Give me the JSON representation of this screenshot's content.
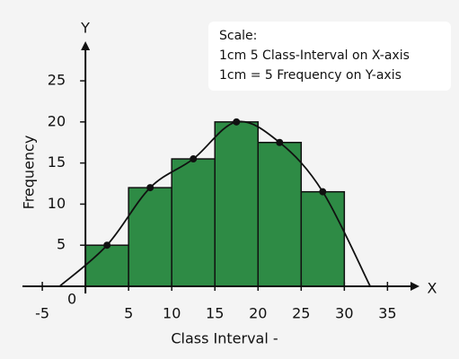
{
  "chart_data": {
    "type": "histogram",
    "bins": [
      0,
      5,
      10,
      15,
      20,
      25,
      30
    ],
    "values": [
      5,
      12,
      15.5,
      20,
      17.5,
      11.5
    ],
    "color": "#2e8b45",
    "curve": {
      "x": [
        -3,
        2.5,
        7.5,
        12.5,
        17.5,
        22.5,
        27.5,
        33
      ],
      "values": [
        0,
        5,
        12,
        15.5,
        20,
        17.5,
        11.5,
        0
      ]
    },
    "xlim": [
      -7.3,
      38.5
    ],
    "ylim": [
      0,
      28.5
    ],
    "xticks": [
      -5,
      0,
      5,
      10,
      15,
      20,
      25,
      30,
      35
    ],
    "yticks": [
      5,
      10,
      15,
      20,
      25
    ],
    "x_axis_name": "X",
    "y_axis_name": "Y",
    "xlabel": "Class Interval -",
    "ylabel": "Frequency",
    "annotation": [
      "Scale:",
      "1cm 5 Class-Interval on X-axis",
      "1cm = 5 Frequency on Y-axis"
    ]
  }
}
